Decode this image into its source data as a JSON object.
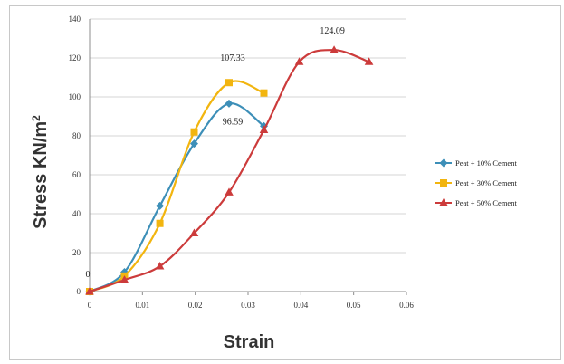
{
  "chart_data": {
    "type": "line",
    "title": "",
    "xlabel": "Strain",
    "ylabel": "Stress KN/m",
    "ylabel_sup": "2",
    "xlim": [
      0,
      0.06
    ],
    "ylim": [
      0,
      140
    ],
    "x_ticks": [
      "0",
      "0.01",
      "0.02",
      "0.03",
      "0.04",
      "0.05",
      "0.06"
    ],
    "y_ticks": [
      "0",
      "20",
      "40",
      "60",
      "80",
      "100",
      "120",
      "140"
    ],
    "grid": "horizontal",
    "legend_position": "right",
    "series": [
      {
        "name": "Peat + 10% Cement",
        "color": "#3d8fb8",
        "marker": "diamond",
        "x": [
          0,
          0.0066,
          0.0133,
          0.0198,
          0.0264,
          0.033
        ],
        "y": [
          0,
          10,
          44,
          76,
          96.59,
          85
        ]
      },
      {
        "name": "Peat + 30% Cement",
        "color": "#f2b50f",
        "marker": "square",
        "x": [
          0,
          0.0066,
          0.0133,
          0.0198,
          0.0264,
          0.033
        ],
        "y": [
          0,
          8,
          35,
          82,
          107.33,
          102
        ]
      },
      {
        "name": "Peat + 50% Cement",
        "color": "#cc3b3b",
        "marker": "triangle",
        "x": [
          0,
          0.0066,
          0.0133,
          0.0198,
          0.0264,
          0.033,
          0.0397,
          0.0463,
          0.0529
        ],
        "y": [
          0,
          6,
          13,
          30,
          51,
          83,
          118,
          124.09,
          118
        ]
      }
    ],
    "annotations": [
      {
        "text": "0",
        "x": 0,
        "y": 0
      },
      {
        "text": "107.33",
        "x": 0.0264,
        "y": 107.33
      },
      {
        "text": "96.59",
        "x": 0.0264,
        "y": 96.59
      },
      {
        "text": "124.09",
        "x": 0.0463,
        "y": 124.09
      }
    ]
  }
}
